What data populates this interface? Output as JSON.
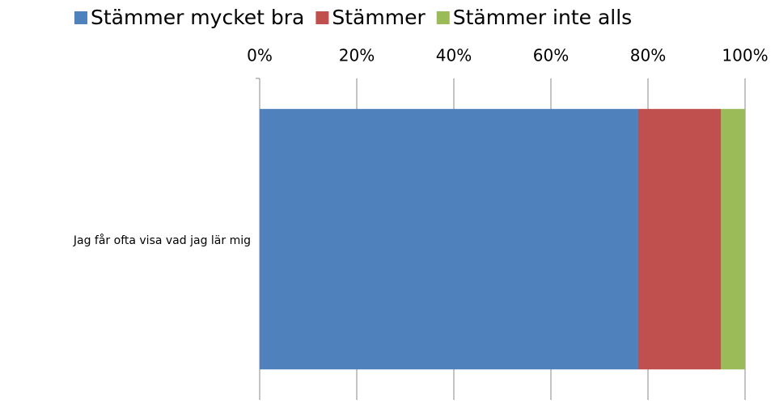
{
  "chart_data": {
    "type": "stacked_bar_horizontal",
    "categories": [
      "Jag får ofta visa vad jag lär mig"
    ],
    "series": [
      {
        "name": "Stämmer mycket bra",
        "color": "#4f81bd",
        "values": [
          78
        ]
      },
      {
        "name": "Stämmer",
        "color": "#c0504d",
        "values": [
          17
        ]
      },
      {
        "name": "Stämmer inte alls",
        "color": "#9bbb59",
        "values": [
          5
        ]
      }
    ],
    "xlim": [
      0,
      100
    ],
    "xticks": [
      {
        "value": 0,
        "label": "0%"
      },
      {
        "value": 20,
        "label": "20%"
      },
      {
        "value": 40,
        "label": "40%"
      },
      {
        "value": 60,
        "label": "60%"
      },
      {
        "value": 80,
        "label": "80%"
      },
      {
        "value": 100,
        "label": "100%"
      }
    ],
    "grid": true,
    "legend": "top"
  }
}
